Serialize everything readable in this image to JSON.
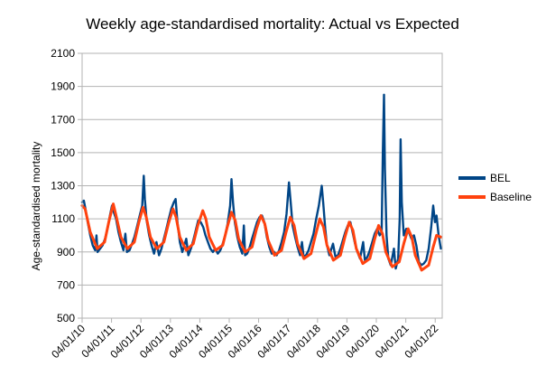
{
  "chart_data": {
    "type": "line",
    "title": "Weekly age-standardised mortality: Actual vs Expected",
    "xlabel": "",
    "ylabel": "Age-standardised mortality",
    "ylim": [
      500,
      2100
    ],
    "yticks": [
      500,
      700,
      900,
      1100,
      1300,
      1500,
      1700,
      1900,
      2100
    ],
    "xlim": [
      "2010-01-04",
      "2022-04-01"
    ],
    "xticks": [
      "04/01/10",
      "04/01/11",
      "04/01/12",
      "04/01/13",
      "04/01/14",
      "04/01/15",
      "04/01/16",
      "04/01/17",
      "04/01/18",
      "04/01/19",
      "04/01/20",
      "04/01/21",
      "04/01/22"
    ],
    "xtick_dates": [
      "2010-01-04",
      "2011-01-04",
      "2012-01-04",
      "2013-01-04",
      "2014-01-04",
      "2015-01-04",
      "2016-01-04",
      "2017-01-04",
      "2018-01-04",
      "2019-01-04",
      "2020-01-04",
      "2021-01-04",
      "2022-01-04"
    ],
    "grid": "horizontal",
    "legend_position": "right",
    "series": [
      {
        "name": "BEL",
        "color": "#004586",
        "points": [
          [
            "2010-01-04",
            1200
          ],
          [
            "2010-01-25",
            1210
          ],
          [
            "2010-02-15",
            1160
          ],
          [
            "2010-03-15",
            1080
          ],
          [
            "2010-04-15",
            1000
          ],
          [
            "2010-05-15",
            940
          ],
          [
            "2010-06-15",
            910
          ],
          [
            "2010-07-01",
            1000
          ],
          [
            "2010-07-15",
            900
          ],
          [
            "2010-08-15",
            920
          ],
          [
            "2010-09-15",
            940
          ],
          [
            "2010-10-15",
            980
          ],
          [
            "2010-11-15",
            1040
          ],
          [
            "2010-12-15",
            1120
          ],
          [
            "2011-01-10",
            1180
          ],
          [
            "2011-02-01",
            1140
          ],
          [
            "2011-03-01",
            1100
          ],
          [
            "2011-04-01",
            1020
          ],
          [
            "2011-05-01",
            960
          ],
          [
            "2011-06-01",
            910
          ],
          [
            "2011-06-25",
            1010
          ],
          [
            "2011-07-15",
            900
          ],
          [
            "2011-08-15",
            910
          ],
          [
            "2011-09-15",
            950
          ],
          [
            "2011-10-15",
            990
          ],
          [
            "2011-11-15",
            1050
          ],
          [
            "2011-12-20",
            1120
          ],
          [
            "2012-01-20",
            1180
          ],
          [
            "2012-02-08",
            1360
          ],
          [
            "2012-02-22",
            1220
          ],
          [
            "2012-03-15",
            1090
          ],
          [
            "2012-04-15",
            1000
          ],
          [
            "2012-05-15",
            940
          ],
          [
            "2012-06-15",
            890
          ],
          [
            "2012-07-15",
            960
          ],
          [
            "2012-08-15",
            880
          ],
          [
            "2012-09-15",
            920
          ],
          [
            "2012-10-15",
            980
          ],
          [
            "2012-11-15",
            1040
          ],
          [
            "2012-12-15",
            1100
          ],
          [
            "2013-01-15",
            1160
          ],
          [
            "2013-02-15",
            1200
          ],
          [
            "2013-03-10",
            1220
          ],
          [
            "2013-04-01",
            1080
          ],
          [
            "2013-05-01",
            960
          ],
          [
            "2013-06-01",
            900
          ],
          [
            "2013-07-20",
            980
          ],
          [
            "2013-08-15",
            880
          ],
          [
            "2013-09-15",
            920
          ],
          [
            "2013-10-15",
            970
          ],
          [
            "2013-11-15",
            1030
          ],
          [
            "2013-12-15",
            1090
          ],
          [
            "2014-01-15",
            1080
          ],
          [
            "2014-02-15",
            1050
          ],
          [
            "2014-03-15",
            1000
          ],
          [
            "2014-04-15",
            960
          ],
          [
            "2014-05-15",
            920
          ],
          [
            "2014-06-15",
            900
          ],
          [
            "2014-07-15",
            920
          ],
          [
            "2014-08-15",
            890
          ],
          [
            "2014-09-15",
            910
          ],
          [
            "2014-10-15",
            950
          ],
          [
            "2014-11-15",
            1000
          ],
          [
            "2014-12-15",
            1070
          ],
          [
            "2015-01-15",
            1180
          ],
          [
            "2015-02-01",
            1340
          ],
          [
            "2015-02-20",
            1200
          ],
          [
            "2015-03-15",
            1080
          ],
          [
            "2015-04-15",
            990
          ],
          [
            "2015-05-15",
            930
          ],
          [
            "2015-06-15",
            890
          ],
          [
            "2015-07-05",
            1060
          ],
          [
            "2015-07-20",
            880
          ],
          [
            "2015-08-15",
            890
          ],
          [
            "2015-09-15",
            930
          ],
          [
            "2015-10-15",
            980
          ],
          [
            "2015-11-15",
            1030
          ],
          [
            "2015-12-15",
            1080
          ],
          [
            "2016-01-15",
            1110
          ],
          [
            "2016-02-15",
            1120
          ],
          [
            "2016-03-15",
            1080
          ],
          [
            "2016-04-15",
            990
          ],
          [
            "2016-05-15",
            930
          ],
          [
            "2016-06-15",
            890
          ],
          [
            "2016-07-15",
            900
          ],
          [
            "2016-08-15",
            880
          ],
          [
            "2016-09-15",
            910
          ],
          [
            "2016-10-15",
            960
          ],
          [
            "2016-11-15",
            1020
          ],
          [
            "2016-12-15",
            1130
          ],
          [
            "2017-01-15",
            1320
          ],
          [
            "2017-02-05",
            1200
          ],
          [
            "2017-03-01",
            1060
          ],
          [
            "2017-04-01",
            990
          ],
          [
            "2017-05-01",
            930
          ],
          [
            "2017-06-01",
            880
          ],
          [
            "2017-06-25",
            960
          ],
          [
            "2017-07-15",
            870
          ],
          [
            "2017-08-15",
            880
          ],
          [
            "2017-09-15",
            910
          ],
          [
            "2017-10-15",
            960
          ],
          [
            "2017-11-15",
            1010
          ],
          [
            "2017-12-15",
            1090
          ],
          [
            "2018-01-20",
            1180
          ],
          [
            "2018-02-25",
            1300
          ],
          [
            "2018-03-15",
            1200
          ],
          [
            "2018-04-10",
            1040
          ],
          [
            "2018-05-01",
            940
          ],
          [
            "2018-06-01",
            880
          ],
          [
            "2018-07-15",
            950
          ],
          [
            "2018-08-15",
            870
          ],
          [
            "2018-09-15",
            880
          ],
          [
            "2018-10-15",
            920
          ],
          [
            "2018-11-15",
            970
          ],
          [
            "2018-12-15",
            1020
          ],
          [
            "2019-01-15",
            1060
          ],
          [
            "2019-02-15",
            1080
          ],
          [
            "2019-03-15",
            1020
          ],
          [
            "2019-04-15",
            950
          ],
          [
            "2019-05-15",
            900
          ],
          [
            "2019-06-15",
            860
          ],
          [
            "2019-07-25",
            960
          ],
          [
            "2019-08-15",
            850
          ],
          [
            "2019-09-15",
            870
          ],
          [
            "2019-10-15",
            910
          ],
          [
            "2019-11-15",
            960
          ],
          [
            "2019-12-15",
            1010
          ],
          [
            "2020-01-15",
            1040
          ],
          [
            "2020-02-15",
            1000
          ],
          [
            "2020-03-10",
            1020
          ],
          [
            "2020-03-25",
            1500
          ],
          [
            "2020-04-08",
            1850
          ],
          [
            "2020-04-20",
            1400
          ],
          [
            "2020-05-10",
            1000
          ],
          [
            "2020-06-01",
            860
          ],
          [
            "2020-07-01",
            820
          ],
          [
            "2020-08-10",
            920
          ],
          [
            "2020-09-01",
            800
          ],
          [
            "2020-10-01",
            860
          ],
          [
            "2020-10-20",
            1100
          ],
          [
            "2020-11-01",
            1580
          ],
          [
            "2020-11-15",
            1200
          ],
          [
            "2020-12-10",
            1000
          ],
          [
            "2021-01-10",
            1040
          ],
          [
            "2021-02-10",
            1020
          ],
          [
            "2021-03-15",
            980
          ],
          [
            "2021-04-15",
            1000
          ],
          [
            "2021-05-15",
            940
          ],
          [
            "2021-06-15",
            840
          ],
          [
            "2021-07-15",
            820
          ],
          [
            "2021-08-15",
            830
          ],
          [
            "2021-09-15",
            850
          ],
          [
            "2021-10-15",
            920
          ],
          [
            "2021-11-15",
            1050
          ],
          [
            "2021-12-10",
            1180
          ],
          [
            "2022-01-01",
            1080
          ],
          [
            "2022-01-20",
            1120
          ],
          [
            "2022-02-15",
            1000
          ],
          [
            "2022-03-15",
            920
          ]
        ]
      },
      {
        "name": "Baseline",
        "color": "#ff420e",
        "points": [
          [
            "2010-01-04",
            1180
          ],
          [
            "2010-02-10",
            1160
          ],
          [
            "2010-04-15",
            1020
          ],
          [
            "2010-07-10",
            920
          ],
          [
            "2010-10-10",
            960
          ],
          [
            "2010-12-01",
            1080
          ],
          [
            "2011-01-25",
            1190
          ],
          [
            "2011-03-01",
            1120
          ],
          [
            "2011-05-01",
            990
          ],
          [
            "2011-07-20",
            920
          ],
          [
            "2011-10-15",
            960
          ],
          [
            "2011-12-10",
            1080
          ],
          [
            "2012-01-30",
            1170
          ],
          [
            "2012-03-10",
            1110
          ],
          [
            "2012-05-01",
            990
          ],
          [
            "2012-07-20",
            920
          ],
          [
            "2012-10-15",
            960
          ],
          [
            "2012-12-10",
            1070
          ],
          [
            "2013-02-05",
            1160
          ],
          [
            "2013-03-15",
            1110
          ],
          [
            "2013-05-01",
            990
          ],
          [
            "2013-07-20",
            910
          ],
          [
            "2013-10-15",
            950
          ],
          [
            "2013-12-10",
            1060
          ],
          [
            "2014-02-10",
            1150
          ],
          [
            "2014-03-20",
            1100
          ],
          [
            "2014-05-01",
            990
          ],
          [
            "2014-07-20",
            910
          ],
          [
            "2014-10-15",
            940
          ],
          [
            "2014-12-10",
            1050
          ],
          [
            "2015-02-01",
            1140
          ],
          [
            "2015-03-20",
            1090
          ],
          [
            "2015-05-01",
            980
          ],
          [
            "2015-07-20",
            900
          ],
          [
            "2015-10-15",
            930
          ],
          [
            "2015-12-10",
            1040
          ],
          [
            "2016-02-01",
            1120
          ],
          [
            "2016-03-20",
            1070
          ],
          [
            "2016-05-01",
            970
          ],
          [
            "2016-07-20",
            880
          ],
          [
            "2016-10-15",
            910
          ],
          [
            "2016-12-10",
            1020
          ],
          [
            "2017-02-01",
            1110
          ],
          [
            "2017-03-20",
            1060
          ],
          [
            "2017-05-01",
            950
          ],
          [
            "2017-07-20",
            860
          ],
          [
            "2017-10-15",
            890
          ],
          [
            "2017-12-10",
            1000
          ],
          [
            "2018-02-01",
            1100
          ],
          [
            "2018-03-20",
            1050
          ],
          [
            "2018-05-01",
            940
          ],
          [
            "2018-07-20",
            850
          ],
          [
            "2018-10-15",
            880
          ],
          [
            "2018-12-10",
            990
          ],
          [
            "2019-02-01",
            1080
          ],
          [
            "2019-03-20",
            1030
          ],
          [
            "2019-05-01",
            920
          ],
          [
            "2019-07-20",
            830
          ],
          [
            "2019-10-15",
            860
          ],
          [
            "2019-12-10",
            970
          ],
          [
            "2020-02-01",
            1060
          ],
          [
            "2020-03-20",
            1010
          ],
          [
            "2020-05-01",
            900
          ],
          [
            "2020-07-20",
            810
          ],
          [
            "2020-10-15",
            840
          ],
          [
            "2020-12-10",
            950
          ],
          [
            "2021-02-01",
            1040
          ],
          [
            "2021-03-20",
            990
          ],
          [
            "2021-05-01",
            880
          ],
          [
            "2021-07-20",
            790
          ],
          [
            "2021-10-15",
            820
          ],
          [
            "2021-12-10",
            930
          ],
          [
            "2022-01-20",
            1000
          ],
          [
            "2022-03-15",
            990
          ]
        ]
      }
    ]
  }
}
